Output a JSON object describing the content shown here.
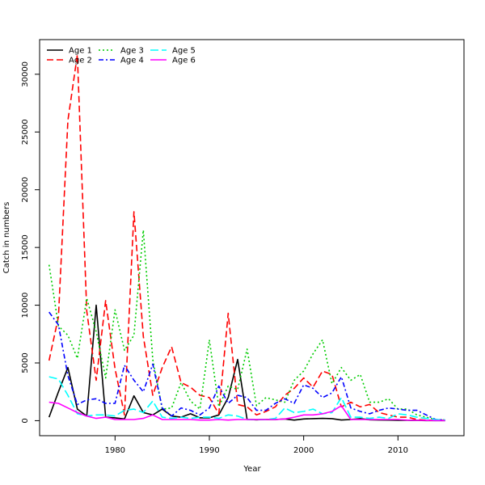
{
  "chart_data": {
    "type": "line",
    "title": "",
    "xlabel": "Year",
    "ylabel": "Catch in numbers",
    "xlim": [
      1972,
      2017
    ],
    "ylim": [
      -1300,
      33000
    ],
    "x_ticks": [
      1980,
      1990,
      2000,
      2010
    ],
    "y_ticks": [
      0,
      5000,
      10000,
      15000,
      20000,
      25000,
      30000
    ],
    "grid": false,
    "legend_position": "top-left",
    "x": [
      1973,
      1974,
      1975,
      1976,
      1977,
      1978,
      1979,
      1980,
      1981,
      1982,
      1983,
      1984,
      1985,
      1986,
      1987,
      1988,
      1989,
      1990,
      1991,
      1992,
      1993,
      1994,
      1995,
      1996,
      1997,
      1998,
      1999,
      2000,
      2001,
      2002,
      2003,
      2004,
      2005,
      2006,
      2007,
      2008,
      2009,
      2010,
      2011,
      2012,
      2013,
      2014,
      2015
    ],
    "series": [
      {
        "name": "Age 1",
        "color": "#000000",
        "dash": "",
        "values": [
          300,
          2500,
          4600,
          1000,
          400,
          10000,
          300,
          250,
          150,
          2150,
          700,
          500,
          1000,
          400,
          300,
          600,
          250,
          250,
          500,
          2000,
          5300,
          100,
          80,
          100,
          100,
          150,
          50,
          150,
          180,
          200,
          180,
          60,
          100,
          180,
          80,
          60,
          50,
          30,
          30,
          20,
          10,
          10,
          10
        ]
      },
      {
        "name": "Age 2",
        "color": "#ff0000",
        "dash": "8,4",
        "values": [
          5200,
          9000,
          26000,
          31700,
          9500,
          3500,
          10400,
          4500,
          500,
          18100,
          7300,
          2200,
          4600,
          6400,
          3300,
          2900,
          2200,
          2000,
          600,
          9300,
          1400,
          1200,
          500,
          800,
          1200,
          2200,
          2800,
          3700,
          2900,
          4300,
          4000,
          1200,
          1600,
          1200,
          1400,
          700,
          500,
          300,
          300,
          100,
          50,
          40,
          40
        ]
      },
      {
        "name": "Age 3",
        "color": "#00cc00",
        "dash": "2,3",
        "values": [
          13500,
          8200,
          7400,
          5400,
          10600,
          7700,
          3700,
          9600,
          6100,
          7400,
          16500,
          5300,
          1000,
          1100,
          3300,
          1700,
          1000,
          7000,
          1200,
          3000,
          2700,
          6200,
          1300,
          2000,
          1800,
          1600,
          3500,
          4300,
          5800,
          7000,
          3200,
          4600,
          3500,
          4000,
          1600,
          1600,
          1900,
          1000,
          1000,
          500,
          300,
          100,
          60
        ]
      },
      {
        "name": "Age 4",
        "color": "#0000ff",
        "dash": "6,3,2,3",
        "values": [
          9400,
          8300,
          3900,
          1400,
          1800,
          1900,
          1500,
          1500,
          4800,
          3500,
          2500,
          4900,
          1100,
          400,
          1100,
          900,
          500,
          1100,
          3000,
          1500,
          2200,
          2000,
          900,
          900,
          1500,
          1900,
          1500,
          3100,
          2800,
          2000,
          2400,
          3800,
          1100,
          800,
          600,
          900,
          1100,
          1000,
          900,
          900,
          500,
          100,
          50
        ]
      },
      {
        "name": "Age 5",
        "color": "#00ffff",
        "dash": "10,4",
        "values": [
          3800,
          3600,
          2200,
          600,
          400,
          500,
          500,
          400,
          900,
          1000,
          700,
          1700,
          300,
          200,
          300,
          200,
          300,
          300,
          200,
          500,
          400,
          100,
          100,
          100,
          200,
          1100,
          700,
          800,
          1000,
          600,
          700,
          2000,
          300,
          300,
          200,
          300,
          200,
          600,
          500,
          300,
          200,
          100,
          50
        ]
      },
      {
        "name": "Age 6",
        "color": "#ff00ff",
        "dash": "",
        "values": [
          1600,
          1500,
          1100,
          700,
          400,
          200,
          300,
          100,
          100,
          100,
          200,
          500,
          100,
          100,
          100,
          100,
          50,
          50,
          100,
          50,
          100,
          100,
          100,
          100,
          100,
          150,
          300,
          500,
          500,
          600,
          800,
          1300,
          100,
          100,
          100,
          100,
          100,
          100,
          50,
          30,
          20,
          10,
          10
        ]
      }
    ]
  }
}
